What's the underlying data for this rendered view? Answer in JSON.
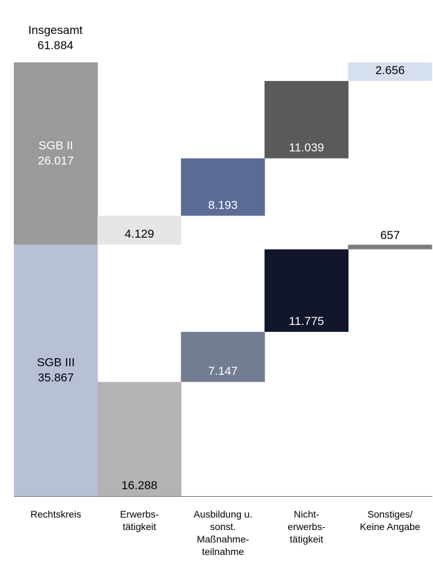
{
  "chart_data": {
    "type": "bar",
    "subtype": "waterfall-stacked",
    "title_label": "Insgesamt",
    "title_value": "61.884",
    "total": 61884,
    "categories": [
      [
        "Rechtskreis"
      ],
      [
        "Erwerbs-",
        "tätigkeit"
      ],
      [
        "Ausbildung u.",
        "sonst.",
        "Maßnahme-",
        "teilnahme"
      ],
      [
        "Nicht-",
        "erwerbs-",
        "tätigkeit"
      ],
      [
        "Sonstiges/",
        "Keine Angabe"
      ]
    ],
    "segments": [
      {
        "category": 0,
        "group": "SGB II",
        "name": "SGB II",
        "value": 26017,
        "start": 35867,
        "label": "26.017",
        "color": "#9a9a9a",
        "text_color": "#ffffff"
      },
      {
        "category": 0,
        "group": "SGB III",
        "name": "SGB III",
        "value": 35867,
        "start": 0,
        "label": "35.867",
        "color": "#b8c0d6",
        "text_color": "#000000"
      },
      {
        "category": 1,
        "group": "SGB II",
        "value": 4129,
        "start": 35867,
        "label": "4.129",
        "color": "#e6e6e6",
        "text_color": "#000000"
      },
      {
        "category": 1,
        "group": "SGB III",
        "value": 16288,
        "start": 0,
        "label": "16.288",
        "color": "#b3b3b3",
        "text_color": "#000000"
      },
      {
        "category": 2,
        "group": "SGB II",
        "value": 8193,
        "start": 39996,
        "label": "8.193",
        "color": "#5b6b96",
        "text_color": "#ffffff"
      },
      {
        "category": 2,
        "group": "SGB III",
        "value": 7147,
        "start": 16288,
        "label": "7.147",
        "color": "#737d92",
        "text_color": "#ffffff"
      },
      {
        "category": 3,
        "group": "SGB II",
        "value": 11039,
        "start": 48189,
        "label": "11.039",
        "color": "#5a5a5a",
        "text_color": "#ffffff"
      },
      {
        "category": 3,
        "group": "SGB III",
        "value": 11775,
        "start": 23435,
        "label": "11.775",
        "color": "#11162b",
        "text_color": "#ffffff"
      },
      {
        "category": 4,
        "group": "SGB II",
        "value": 2656,
        "start": 59228,
        "label": "2.656",
        "color": "#d6dfee",
        "text_color": "#000000"
      },
      {
        "category": 4,
        "group": "SGB III",
        "value": 657,
        "start": 35210,
        "label": "657",
        "color": "#7a7a7a",
        "text_color": "#000000",
        "label_above": true
      }
    ]
  }
}
